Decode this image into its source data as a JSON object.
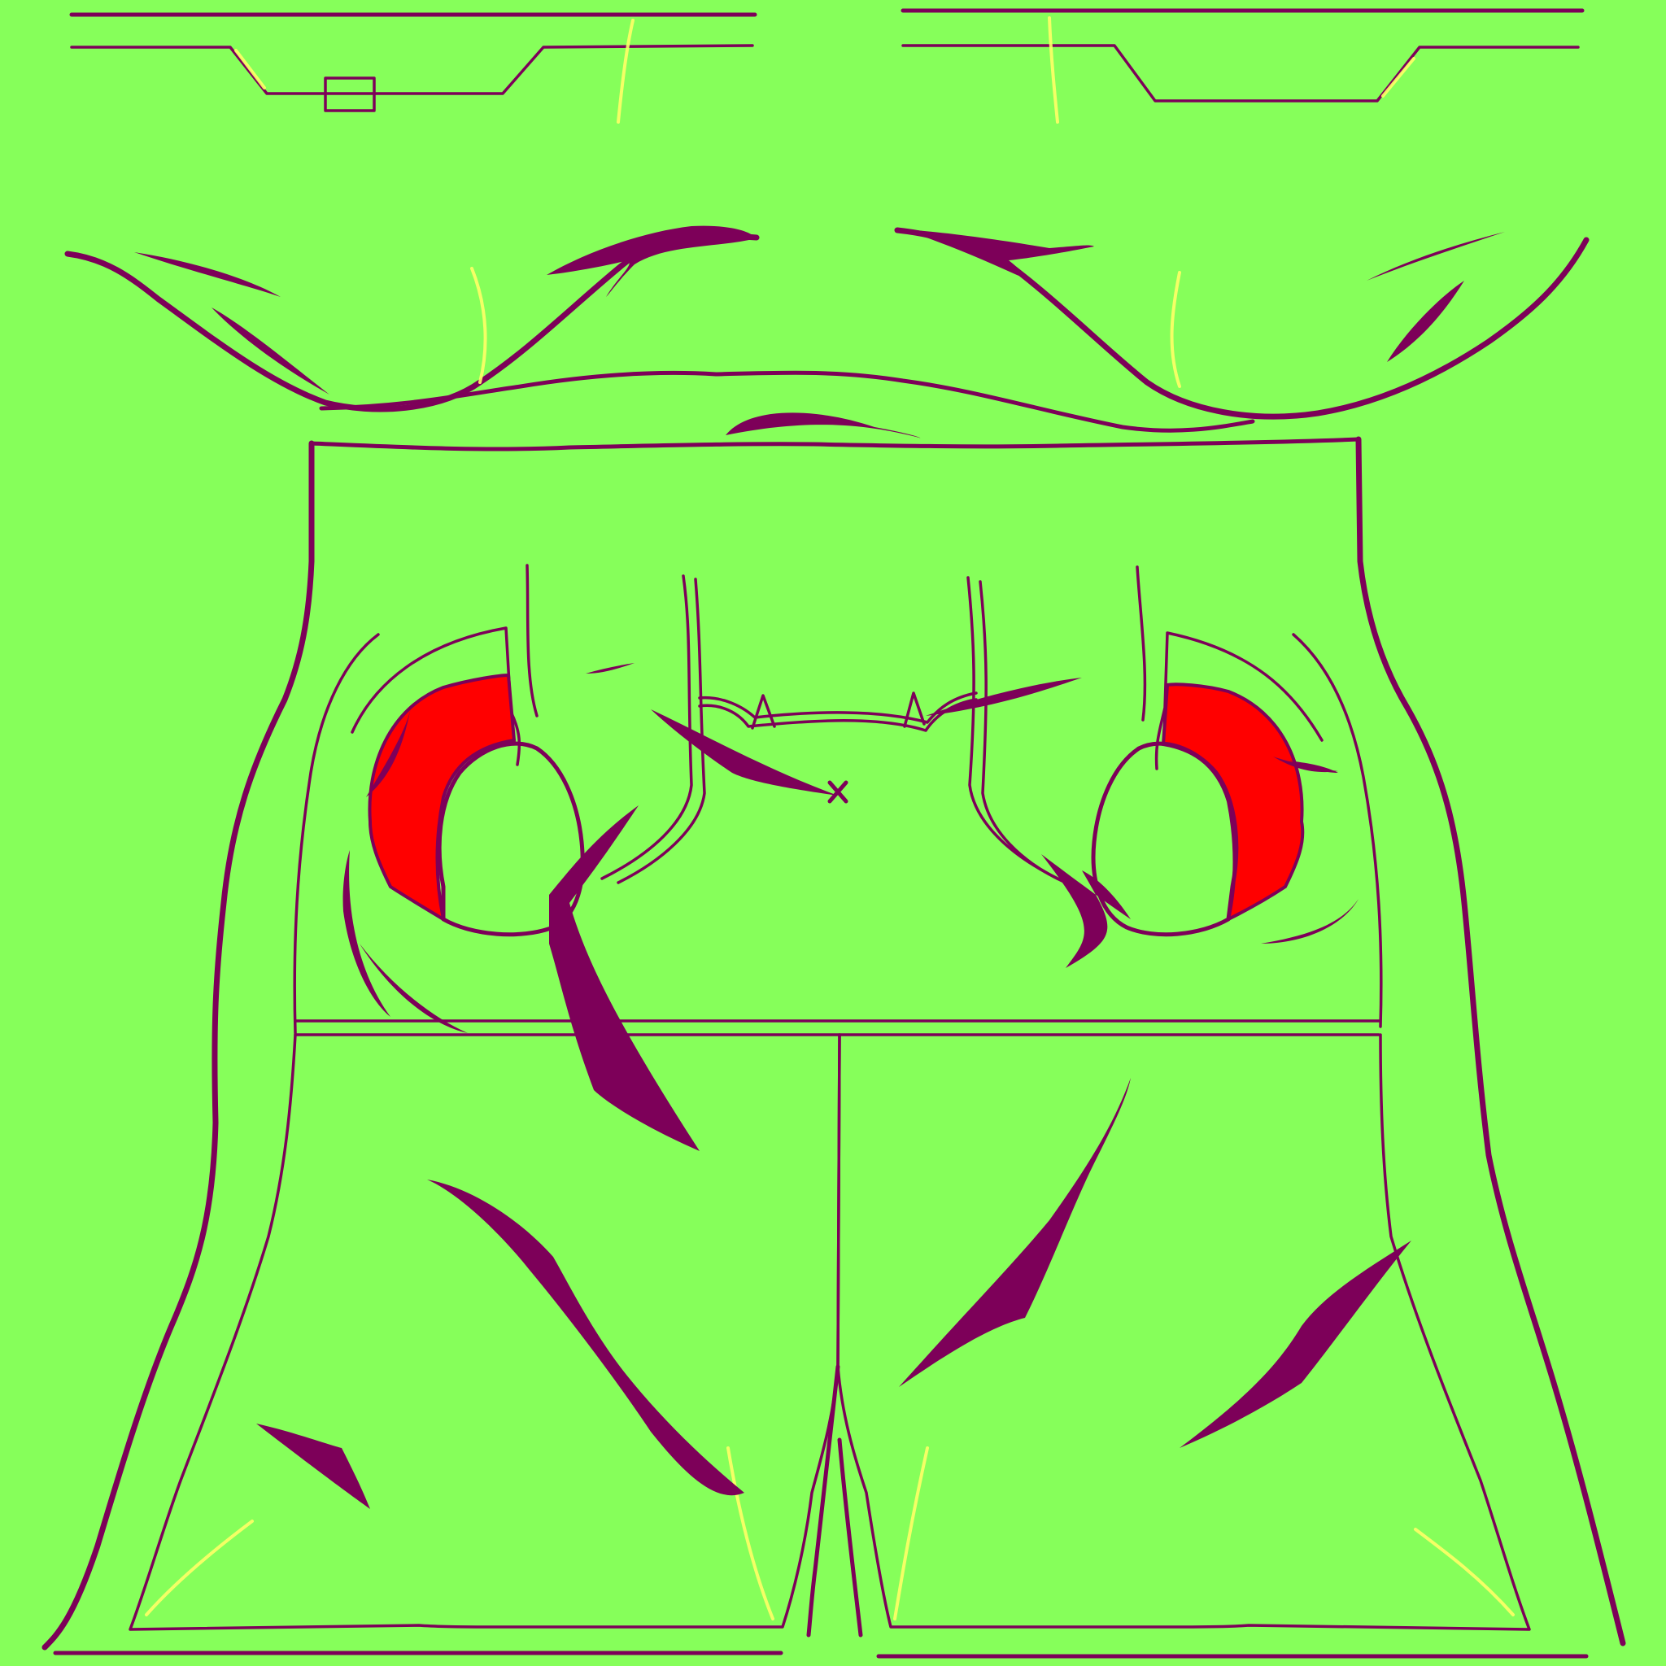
{
  "texture": {
    "background_color": "#86ff5a",
    "line_color": "#7d0059",
    "accent_color": "#ff0000",
    "highlight_color": "#ffff66"
  }
}
